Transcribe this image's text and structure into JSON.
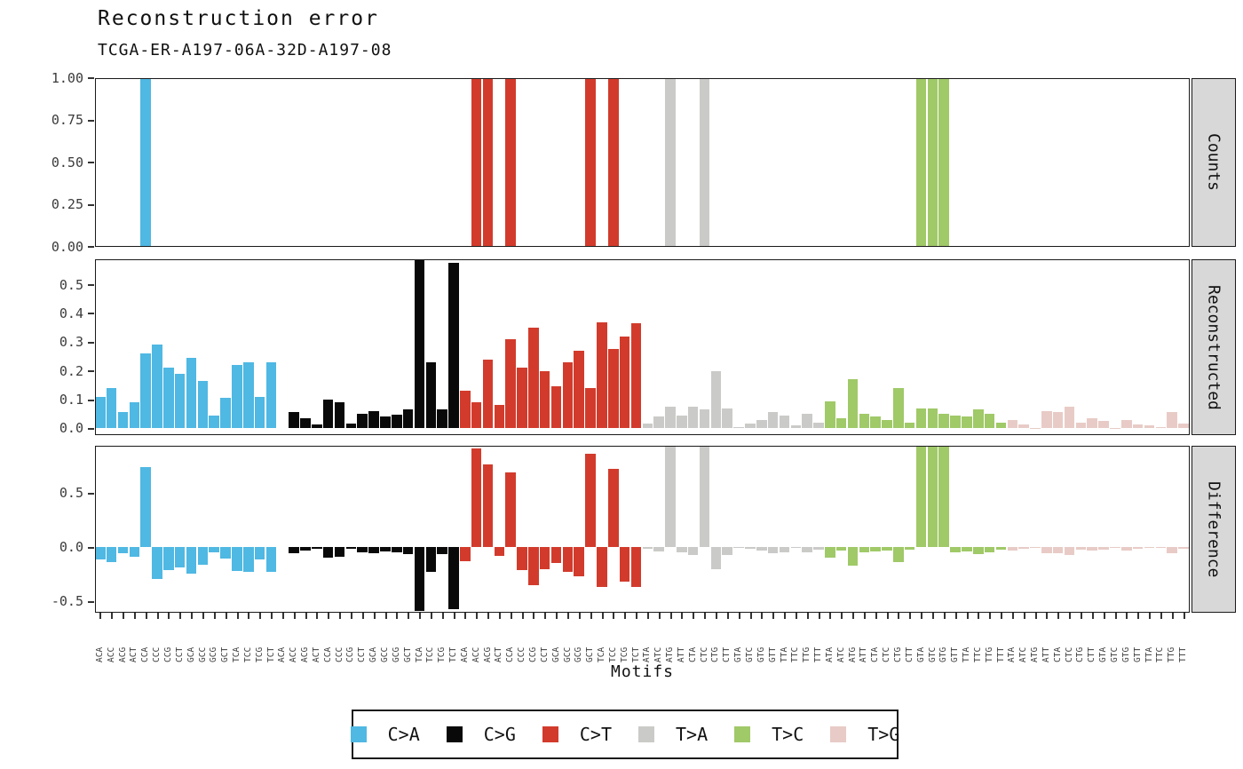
{
  "title": "Reconstruction error",
  "subtitle": "TCGA-ER-A197-06A-32D-A197-08",
  "xlabel": "Motifs",
  "panel_labels": [
    "Counts",
    "Reconstructed",
    "Difference"
  ],
  "yticks": {
    "counts": {
      "labels": [
        "1.00",
        "0.75",
        "0.50",
        "0.25",
        "0.00"
      ],
      "values": [
        1.0,
        0.75,
        0.5,
        0.25,
        0.0
      ]
    },
    "reconstructed": {
      "labels": [
        "0.5",
        "0.4",
        "0.3",
        "0.2",
        "0.1",
        "0.0"
      ],
      "values": [
        0.5,
        0.4,
        0.3,
        0.2,
        0.1,
        0.0
      ]
    },
    "difference": {
      "labels": [
        "0.5",
        "0.0",
        "-0.5"
      ],
      "values": [
        0.5,
        0.0,
        -0.5
      ]
    }
  },
  "legend": {
    "items": [
      {
        "label": "C>A",
        "color": "#4FB8E3"
      },
      {
        "label": "C>G",
        "color": "#090909"
      },
      {
        "label": "C>T",
        "color": "#D23B2C"
      },
      {
        "label": "T>A",
        "color": "#CACAC8"
      },
      {
        "label": "T>C",
        "color": "#A0C968"
      },
      {
        "label": "T>G",
        "color": "#E8CBC6"
      }
    ]
  },
  "chart_data": {
    "type": "bar",
    "title": "Reconstruction error",
    "subtitle": "TCGA-ER-A197-06A-32D-A197-08",
    "xlabel": "Motifs",
    "panels": [
      "Counts",
      "Reconstructed",
      "Difference"
    ],
    "mutation_types": [
      "C>A",
      "C>G",
      "C>T",
      "T>A",
      "T>C",
      "T>G"
    ],
    "mutation_type_colors": [
      "#4FB8E3",
      "#090909",
      "#D23B2C",
      "#CACAC8",
      "#A0C968",
      "#E8CBC6"
    ],
    "motifs_per_type": 16,
    "motifs": [
      "ACA",
      "ACC",
      "ACG",
      "ACT",
      "CCA",
      "CCC",
      "CCG",
      "CCT",
      "GCA",
      "GCC",
      "GCG",
      "GCT",
      "TCA",
      "TCC",
      "TCG",
      "TCT",
      "ACA",
      "ACC",
      "ACG",
      "ACT",
      "CCA",
      "CCC",
      "CCG",
      "CCT",
      "GCA",
      "GCC",
      "GCG",
      "GCT",
      "TCA",
      "TCC",
      "TCG",
      "TCT",
      "ACA",
      "ACC",
      "ACG",
      "ACT",
      "CCA",
      "CCC",
      "CCG",
      "CCT",
      "GCA",
      "GCC",
      "GCG",
      "GCT",
      "TCA",
      "TCC",
      "TCG",
      "TCT",
      "ATA",
      "ATC",
      "ATG",
      "ATT",
      "CTA",
      "CTC",
      "CTG",
      "CTT",
      "GTA",
      "GTC",
      "GTG",
      "GTT",
      "TTA",
      "TTC",
      "TTG",
      "TTT",
      "ATA",
      "ATC",
      "ATG",
      "ATT",
      "CTA",
      "CTC",
      "CTG",
      "CTT",
      "GTA",
      "GTC",
      "GTG",
      "GTT",
      "TTA",
      "TTC",
      "TTG",
      "TTT",
      "ATA",
      "ATC",
      "ATG",
      "ATT",
      "CTA",
      "CTC",
      "CTG",
      "CTT",
      "GTA",
      "GTC",
      "GTG",
      "GTT",
      "TTA",
      "TTC",
      "TTG",
      "TTT"
    ],
    "counts": [
      0,
      0,
      0,
      0,
      1,
      0,
      0,
      0,
      0,
      0,
      0,
      0,
      0,
      0,
      0,
      0,
      0,
      0,
      0,
      0,
      0,
      0,
      0,
      0,
      0,
      0,
      0,
      0,
      0,
      0,
      0,
      0,
      0,
      1,
      1,
      0,
      1,
      0,
      0,
      0,
      0,
      0,
      0,
      1,
      0,
      1,
      0,
      0,
      0,
      0,
      1,
      0,
      0,
      1,
      0,
      0,
      0,
      0,
      0,
      0,
      0,
      0,
      0,
      0,
      0,
      0,
      0,
      0,
      0,
      0,
      0,
      0,
      1,
      1,
      1,
      0,
      0,
      0,
      0,
      0,
      0,
      0,
      0,
      0,
      0,
      0,
      0,
      0,
      0,
      0,
      0,
      0,
      0,
      0,
      0,
      0
    ],
    "reconstructed": [
      0.11,
      0.14,
      0.055,
      0.09,
      0.26,
      0.29,
      0.21,
      0.19,
      0.245,
      0.165,
      0.045,
      0.105,
      0.22,
      0.23,
      0.11,
      0.23,
      0.0,
      0.055,
      0.035,
      0.012,
      0.1,
      0.09,
      0.015,
      0.05,
      0.06,
      0.04,
      0.048,
      0.065,
      0.585,
      0.23,
      0.065,
      0.575,
      0.13,
      0.09,
      0.24,
      0.08,
      0.31,
      0.21,
      0.35,
      0.2,
      0.145,
      0.23,
      0.27,
      0.14,
      0.37,
      0.275,
      0.32,
      0.365,
      0.015,
      0.04,
      0.075,
      0.045,
      0.075,
      0.065,
      0.2,
      0.07,
      0.005,
      0.015,
      0.03,
      0.055,
      0.045,
      0.01,
      0.05,
      0.02,
      0.095,
      0.035,
      0.17,
      0.05,
      0.04,
      0.03,
      0.14,
      0.02,
      0.07,
      0.07,
      0.05,
      0.045,
      0.04,
      0.065,
      0.05,
      0.02,
      0.03,
      0.013,
      0.002,
      0.06,
      0.055,
      0.075,
      0.02,
      0.035,
      0.025,
      0.002,
      0.03,
      0.012,
      0.01,
      0.004,
      0.055,
      0.015
    ],
    "difference": [
      -0.11,
      -0.14,
      -0.055,
      -0.09,
      0.74,
      -0.29,
      -0.21,
      -0.19,
      -0.245,
      -0.165,
      -0.045,
      -0.105,
      -0.22,
      -0.23,
      -0.11,
      -0.23,
      0.0,
      -0.055,
      -0.035,
      -0.012,
      -0.1,
      -0.09,
      -0.015,
      -0.05,
      -0.06,
      -0.04,
      -0.048,
      -0.065,
      -0.585,
      -0.23,
      -0.065,
      -0.575,
      -0.13,
      0.91,
      0.76,
      -0.08,
      0.69,
      -0.21,
      -0.35,
      -0.2,
      -0.145,
      -0.23,
      -0.27,
      0.86,
      -0.37,
      0.725,
      -0.32,
      -0.365,
      -0.015,
      -0.04,
      0.925,
      -0.045,
      -0.075,
      0.935,
      -0.2,
      -0.07,
      -0.005,
      -0.015,
      -0.03,
      -0.055,
      -0.045,
      -0.01,
      -0.05,
      -0.02,
      -0.095,
      -0.035,
      -0.17,
      -0.05,
      -0.04,
      -0.03,
      -0.14,
      -0.02,
      0.93,
      0.93,
      0.95,
      -0.045,
      -0.04,
      -0.065,
      -0.05,
      -0.02,
      -0.03,
      -0.013,
      -0.002,
      -0.06,
      -0.055,
      -0.075,
      -0.02,
      -0.035,
      -0.025,
      -0.002,
      -0.03,
      -0.012,
      -0.01,
      -0.004,
      -0.055,
      -0.015
    ],
    "ylims": {
      "counts": [
        0,
        1.0
      ],
      "reconstructed": [
        -0.022,
        0.59
      ],
      "difference": [
        -0.6,
        0.94
      ]
    },
    "legend_position": "bottom",
    "grid": false
  }
}
